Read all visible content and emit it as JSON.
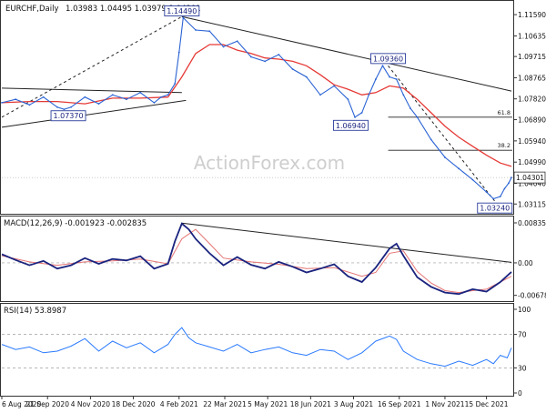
{
  "header": {
    "symbol": "EURCHF,Daily",
    "ohlc": "1.03983 1.04495 1.03979 1.04301"
  },
  "watermark": "ActionForex.com",
  "colors": {
    "price_line": "#2a63d4",
    "ma_line": "#e53935",
    "macd_line": "#1a237e",
    "signal_line": "#e57373",
    "rsi_line": "#2979ff",
    "grid": "#c8c8c8",
    "axis": "#333333",
    "label_bg": "#ffffff",
    "label_border": "#2a3d9c",
    "label_text": "#1a237e"
  },
  "chart_data": [
    {
      "type": "line",
      "panel": "price",
      "title": "EURCHF,Daily",
      "ylim": [
        1.028,
        1.12
      ],
      "y_ticks": [
        "1.11590",
        "1.10635",
        "1.09715",
        "1.08765",
        "1.07820",
        "1.06890",
        "1.05940",
        "1.04990",
        "1.04040",
        "1.03115"
      ],
      "y_tick_values": [
        1.1159,
        1.10635,
        1.09715,
        1.08765,
        1.0782,
        1.0689,
        1.0594,
        1.0499,
        1.0404,
        1.03115
      ],
      "x_ticks": [
        "6 Aug 2020",
        "21 Sep 2020",
        "4 Nov 2020",
        "18 Dec 2020",
        "4 Feb 2021",
        "22 Mar 2021",
        "5 May 2021",
        "18 Jun 2021",
        "3 Aug 2021",
        "16 Sep 2021",
        "1 Nov 2021",
        "15 Dec 2021"
      ],
      "x_tick_index": [
        0,
        33,
        64,
        95,
        128,
        161,
        192,
        223,
        254,
        287,
        320,
        350
      ],
      "series": [
        {
          "kind": "price",
          "x": [
            0,
            10,
            20,
            30,
            40,
            45,
            50,
            60,
            70,
            80,
            90,
            100,
            110,
            115,
            120,
            125,
            128,
            131,
            140,
            150,
            160,
            170,
            180,
            190,
            200,
            210,
            220,
            230,
            240,
            250,
            255,
            260,
            265,
            270,
            275,
            280,
            285,
            290,
            295,
            300,
            310,
            320,
            330,
            340,
            350,
            355,
            360,
            363,
            366,
            368
          ],
          "values": [
            1.0765,
            1.078,
            1.0755,
            1.079,
            1.0745,
            1.0735,
            1.0745,
            1.079,
            1.076,
            1.08,
            1.078,
            1.081,
            1.0765,
            1.079,
            1.08,
            1.085,
            1.099,
            1.1145,
            1.109,
            1.1085,
            1.1015,
            1.104,
            1.097,
            1.095,
            1.098,
            1.0915,
            1.088,
            1.08,
            1.084,
            1.078,
            1.07,
            1.072,
            1.08,
            1.087,
            1.093,
            1.088,
            1.087,
            1.08,
            1.074,
            1.07,
            1.06,
            1.052,
            1.047,
            1.042,
            1.0365,
            1.0335,
            1.0345,
            1.038,
            1.0405,
            1.043
          ]
        },
        {
          "kind": "moving-average",
          "x": [
            0,
            20,
            40,
            60,
            80,
            100,
            120,
            130,
            140,
            150,
            160,
            170,
            180,
            190,
            200,
            210,
            220,
            230,
            240,
            250,
            260,
            270,
            280,
            290,
            300,
            310,
            320,
            330,
            340,
            350,
            360,
            368
          ],
          "values": [
            1.0765,
            1.077,
            1.077,
            1.076,
            1.0785,
            1.0785,
            1.079,
            1.088,
            1.0985,
            1.1025,
            1.1025,
            1.1,
            1.0985,
            1.0965,
            1.096,
            1.095,
            1.093,
            1.089,
            1.0845,
            1.0825,
            1.08,
            1.081,
            1.084,
            1.083,
            1.078,
            1.072,
            1.066,
            1.061,
            1.057,
            1.053,
            1.0495,
            1.048
          ]
        }
      ],
      "annotations": [
        {
          "text": "1.14490",
          "x": 130,
          "y": 1.1149,
          "anchor": "top"
        },
        {
          "text": "1.07370",
          "x": 48,
          "y": 1.0737,
          "anchor": "bottom"
        },
        {
          "text": "1.09360",
          "x": 279,
          "y": 1.0936,
          "anchor": "top"
        },
        {
          "text": "1.06940",
          "x": 252,
          "y": 1.0694,
          "anchor": "bottom"
        },
        {
          "text": "1.03240",
          "x": 356,
          "y": 1.0324,
          "anchor": "bottom"
        }
      ],
      "fib_levels": [
        {
          "label": "61.8",
          "value": 1.07,
          "x_start": 279
        },
        {
          "label": "38.2",
          "value": 1.0552,
          "x_start": 279
        }
      ],
      "trendlines": [
        {
          "style": "solid",
          "points": [
            [
              0,
              1.083
            ],
            [
              130,
              1.081
            ]
          ]
        },
        {
          "style": "solid",
          "points": [
            [
              0,
              1.0655
            ],
            [
              133,
              1.0775
            ]
          ]
        },
        {
          "style": "dashed",
          "points": [
            [
              0,
              1.07
            ],
            [
              130,
              1.115
            ]
          ]
        },
        {
          "style": "solid",
          "points": [
            [
              130,
              1.115
            ],
            [
              368,
              1.0817
            ]
          ]
        },
        {
          "style": "dashed",
          "points": [
            [
              279,
              1.093
            ],
            [
              356,
              1.0324
            ]
          ]
        }
      ],
      "last_price": 1.04301,
      "last_price_label": "1.04301",
      "grid": false
    },
    {
      "type": "line",
      "panel": "macd",
      "title": "MACD(12,26,9) -0.001923 -0.002835",
      "ylim": [
        -0.0078,
        0.0093
      ],
      "y_ticks": [
        "0.008353",
        "0.00",
        "-0.006788"
      ],
      "y_tick_values": [
        0.008353,
        0.0,
        -0.006788
      ],
      "series": [
        {
          "kind": "macd",
          "x": [
            0,
            10,
            20,
            30,
            40,
            50,
            60,
            70,
            80,
            90,
            100,
            110,
            120,
            125,
            130,
            135,
            140,
            150,
            160,
            170,
            180,
            190,
            200,
            210,
            220,
            230,
            240,
            250,
            260,
            270,
            280,
            285,
            290,
            300,
            310,
            320,
            330,
            340,
            350,
            360,
            368
          ],
          "values": [
            0.0018,
            0.0006,
            -0.0005,
            0.0004,
            -0.0012,
            -0.0005,
            0.001,
            -0.0002,
            0.0008,
            0.0005,
            0.0014,
            -0.0012,
            -0.0002,
            0.0045,
            0.0082,
            0.007,
            0.005,
            0.002,
            -0.0005,
            0.0012,
            -0.0004,
            -0.0012,
            0.0002,
            -0.0008,
            -0.002,
            -0.0012,
            -0.0003,
            -0.0028,
            -0.004,
            -0.001,
            0.003,
            0.004,
            0.0015,
            -0.003,
            -0.005,
            -0.0062,
            -0.0065,
            -0.0055,
            -0.006,
            -0.004,
            -0.0019
          ]
        },
        {
          "kind": "signal",
          "x": [
            0,
            20,
            40,
            60,
            80,
            100,
            120,
            130,
            140,
            150,
            160,
            180,
            200,
            220,
            240,
            260,
            270,
            280,
            290,
            300,
            310,
            320,
            330,
            340,
            350,
            360,
            368
          ],
          "values": [
            0.0015,
            0.0002,
            -0.0005,
            0.0002,
            0.0004,
            0.0008,
            -0.0002,
            0.005,
            0.007,
            0.004,
            0.001,
            0.0002,
            -0.0003,
            -0.0012,
            -0.001,
            -0.0028,
            -0.002,
            0.002,
            0.0025,
            -0.0018,
            -0.0042,
            -0.0058,
            -0.0062,
            -0.0058,
            -0.0055,
            -0.004,
            -0.0028
          ]
        }
      ],
      "trendlines": [
        {
          "style": "solid",
          "points": [
            [
              130,
              0.0083
            ],
            [
              368,
              0.0001
            ]
          ]
        }
      ],
      "zero_line": "dashed"
    },
    {
      "type": "line",
      "panel": "rsi",
      "title": "RSI(14) 53.8987",
      "ylim": [
        0,
        100
      ],
      "y_ticks": [
        "100",
        "70",
        "30",
        "0"
      ],
      "y_tick_values": [
        100,
        70,
        30,
        0
      ],
      "series": [
        {
          "kind": "rsi",
          "x": [
            0,
            10,
            20,
            30,
            40,
            50,
            60,
            70,
            80,
            90,
            100,
            110,
            120,
            125,
            130,
            135,
            140,
            150,
            160,
            170,
            180,
            190,
            200,
            210,
            220,
            230,
            240,
            250,
            260,
            270,
            280,
            285,
            290,
            300,
            310,
            320,
            330,
            340,
            350,
            355,
            360,
            365,
            368
          ],
          "values": [
            58,
            52,
            55,
            48,
            50,
            56,
            65,
            50,
            62,
            54,
            60,
            48,
            58,
            70,
            78,
            66,
            60,
            55,
            50,
            58,
            48,
            52,
            55,
            48,
            45,
            52,
            50,
            40,
            48,
            62,
            68,
            64,
            50,
            40,
            35,
            32,
            38,
            33,
            40,
            35,
            45,
            42,
            54
          ]
        }
      ],
      "levels": [
        70,
        30
      ]
    }
  ]
}
